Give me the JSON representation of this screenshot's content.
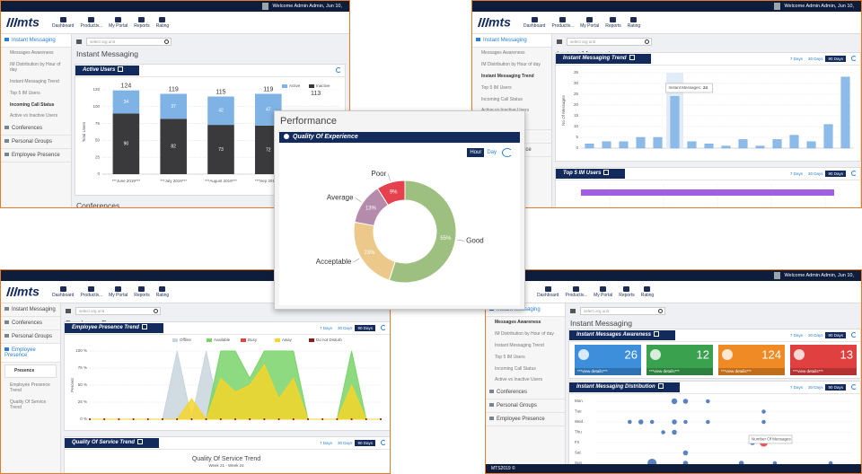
{
  "header": {
    "welcome": "Welcome Admin Admin, Jun 10,"
  },
  "logo": "mts",
  "nav": [
    "Dashboard",
    "Productiv...",
    "My Portal",
    "Reports",
    "Rating"
  ],
  "search_placeholder": "select org unit",
  "sidebar": {
    "items": [
      "Instant Messaging",
      "Conferences",
      "Personal Groups",
      "Employee Presence"
    ],
    "im_sub": [
      "Messages Awareness",
      "IM Distribution by Hour of day",
      "Instant Messaging Trend",
      "Top 5 IM Users",
      "Incoming Call Status",
      "Active vs Inactive Users"
    ],
    "presence_sub": [
      "Presence",
      "Employee Presence Trend",
      "Quality Of Service Trend"
    ]
  },
  "ranges": [
    "7 Days",
    "30 Days",
    "90 Days"
  ],
  "active_users": {
    "title": "Active Users",
    "y_label": "Total Users",
    "categories": [
      "***June 2019***",
      "***July 2019***",
      "***August 2019***",
      "***Sep 2019***",
      null
    ],
    "series": [
      {
        "name": "Active",
        "color": "#7fb3e6",
        "values": [
          34,
          37,
          42,
          47,
          null
        ]
      },
      {
        "name": "Inactive",
        "color": "#3a3a3c",
        "values": [
          90,
          82,
          73,
          72,
          null
        ]
      }
    ],
    "totals": [
      124,
      119,
      115,
      119,
      113
    ],
    "ylim": [
      0,
      125
    ],
    "yticks": [
      0,
      25,
      50,
      75,
      100,
      125
    ]
  },
  "im_trend": {
    "title": "Instant Messaging Trend",
    "y_label": "No Of Messages",
    "color": "#8dbbe9",
    "values": [
      2,
      3,
      3,
      5,
      5,
      24,
      3,
      2,
      1,
      4,
      1,
      4,
      6,
      3,
      11,
      33
    ],
    "ylim": [
      0,
      35
    ],
    "yticks": [
      0,
      5,
      10,
      15,
      20,
      25,
      30,
      35
    ],
    "tooltip": {
      "label": "Instant Messages:",
      "value": 24
    }
  },
  "top5_users": {
    "title": "Top 5 IM Users"
  },
  "presence_trend": {
    "title": "Employee Presence Trend",
    "y_label": "Percent",
    "series": [
      {
        "name": "Offline",
        "color": "#c8d5dd",
        "area": true,
        "values": [
          0,
          0,
          0,
          0,
          0,
          0,
          100,
          0,
          100,
          0,
          0,
          0,
          0,
          0,
          0,
          0,
          0,
          0,
          0,
          0,
          0
        ]
      },
      {
        "name": "Available",
        "color": "#79d46a",
        "area": true,
        "values": [
          0,
          0,
          0,
          0,
          0,
          0,
          0,
          0,
          0,
          100,
          100,
          60,
          100,
          100,
          100,
          0,
          0,
          0,
          100,
          0,
          0
        ]
      },
      {
        "name": "Busy",
        "color": "#e2453c",
        "area": false,
        "values": [
          0,
          0,
          0,
          0,
          0,
          0,
          0,
          0,
          0,
          0,
          0,
          0,
          0,
          0,
          0,
          0,
          0,
          0,
          0,
          0,
          0
        ]
      },
      {
        "name": "Away",
        "color": "#f4d52b",
        "area": true,
        "values": [
          0,
          0,
          0,
          0,
          0,
          0,
          0,
          30,
          0,
          60,
          40,
          50,
          80,
          30,
          60,
          0,
          0,
          0,
          50,
          0,
          0
        ]
      },
      {
        "name": "Do not Disturb",
        "color": "#8b1c1c",
        "area": false,
        "values": [
          0,
          0,
          0,
          0,
          0,
          0,
          0,
          0,
          0,
          0,
          0,
          0,
          0,
          0,
          0,
          0,
          0,
          0,
          0,
          0,
          0
        ]
      }
    ],
    "ylim": [
      0,
      100
    ],
    "yticks": [
      {
        "value": 0,
        "label": "0 %"
      },
      {
        "value": 25,
        "label": "25 %"
      },
      {
        "value": 50,
        "label": "50 %"
      },
      {
        "value": 75,
        "label": "75 %"
      },
      {
        "value": 100,
        "label": "100 %"
      }
    ]
  },
  "qos": {
    "title": "Quality Of Service Trend",
    "subtitle": "Week 21 - Week 24"
  },
  "awareness": {
    "title": "Instant Messages Awareness",
    "values": [
      26,
      12,
      124,
      13
    ],
    "colors": [
      "#3d8fdc",
      "#3aa14e",
      "#f08a24",
      "#e0403f"
    ],
    "link": "***view details***"
  },
  "im_distribution": {
    "title": "Instant Messaging Distribution",
    "days": [
      "Mon",
      "Tue",
      "Wed",
      "Thu",
      "Fri",
      "Sat",
      "Sun"
    ],
    "xlim": [
      0,
      23
    ],
    "points": {
      "hour": [
        7,
        8,
        10,
        15,
        3,
        4,
        5,
        7,
        8,
        10,
        15,
        6,
        7,
        14,
        15,
        8,
        5,
        8,
        13,
        16,
        21
      ],
      "day": [
        0,
        0,
        0,
        1,
        2,
        2,
        2,
        2,
        2,
        2,
        2,
        3,
        3,
        4,
        4,
        5,
        6,
        6,
        6,
        6,
        6
      ],
      "count": [
        4,
        3,
        2,
        2,
        2,
        3,
        2,
        3,
        2,
        2,
        2,
        2,
        3,
        3,
        8,
        3,
        10,
        3,
        3,
        2,
        2
      ],
      "colors": [
        "#3d6db5",
        "#3d6db5",
        "#3d6db5",
        "#3d6db5",
        "#3d6db5",
        "#3d6db5",
        "#3d6db5",
        "#3d6db5",
        "#3d6db5",
        "#3d6db5",
        "#3d6db5",
        "#3d6db5",
        "#3d6db5",
        "#3d6db5",
        "#e23b3b",
        "#3d6db5",
        "#3d6db5",
        "#3d6db5",
        "#3d6db5",
        "#3d6db5",
        "#3d6db5"
      ]
    },
    "tooltip": "Number Of Messages"
  },
  "performance": {
    "title": "Performance",
    "card_title": "Quality Of Experience",
    "buttons": [
      "Hour",
      "Day"
    ],
    "categories": [
      "Good",
      "Acceptable",
      "Average",
      "Poor"
    ],
    "values": [
      55,
      23,
      13,
      9
    ],
    "value_labels": [
      "55%",
      "23%",
      "13%",
      "9%"
    ],
    "colors": [
      "#9dbf7f",
      "#ecc98a",
      "#b48bab",
      "#e5414f"
    ]
  },
  "footer": "MTS2019 ©"
}
